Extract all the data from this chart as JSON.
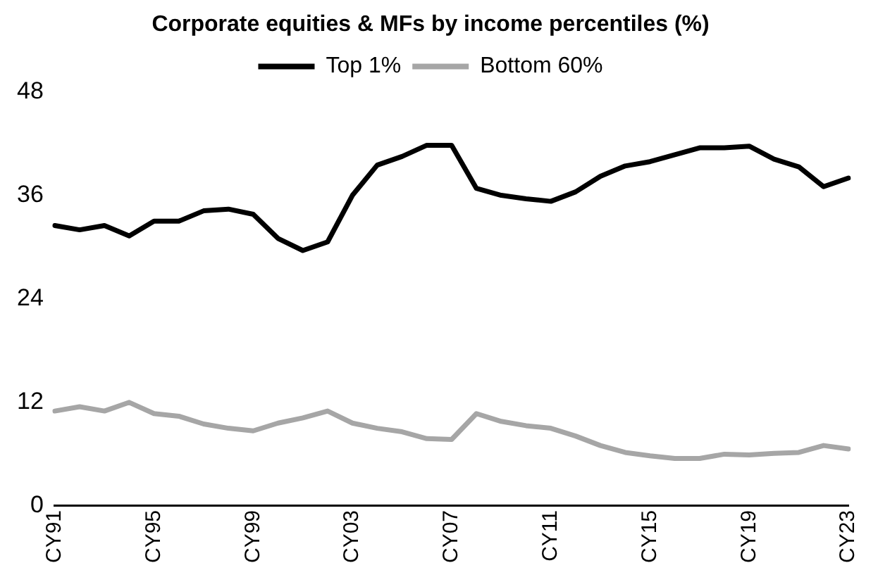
{
  "chart_data": {
    "type": "line",
    "title": "Corporate equities & MFs by income percentiles (%)",
    "categories": [
      "CY91",
      null,
      null,
      null,
      "CY95",
      null,
      null,
      null,
      "CY99",
      null,
      null,
      null,
      "CY03",
      null,
      null,
      null,
      "CY07",
      null,
      null,
      null,
      "CY11",
      null,
      null,
      null,
      "CY15",
      null,
      null,
      null,
      "CY19",
      null,
      null,
      null,
      "CY23"
    ],
    "series": [
      {
        "name": "Top 1%",
        "color": "#000000",
        "values": [
          32.5,
          32,
          32.5,
          31.3,
          33,
          33,
          34.2,
          34.4,
          33.8,
          31,
          29.6,
          30.6,
          36,
          39.5,
          40.5,
          41.8,
          41.8,
          36.8,
          36,
          35.6,
          35.3,
          36.4,
          38.2,
          39.4,
          39.9,
          40.7,
          41.5,
          41.5,
          41.7,
          40.2,
          39.3,
          37,
          38
        ]
      },
      {
        "name": "Bottom 60%",
        "color": "#a6a6a6",
        "values": [
          11,
          11.5,
          11,
          12,
          10.7,
          10.4,
          9.5,
          9,
          8.7,
          9.6,
          10.2,
          11,
          9.6,
          9,
          8.6,
          7.8,
          7.7,
          10.7,
          9.8,
          9.3,
          9,
          8.1,
          7,
          6.2,
          5.8,
          5.5,
          5.5,
          6,
          5.9,
          6.1,
          6.2,
          7,
          6.6
        ]
      }
    ],
    "ylim": [
      0,
      48
    ],
    "yticks": [
      0,
      12,
      24,
      36,
      48
    ],
    "grid": false,
    "legend": "top",
    "marker": "none",
    "line_style": "solid"
  }
}
